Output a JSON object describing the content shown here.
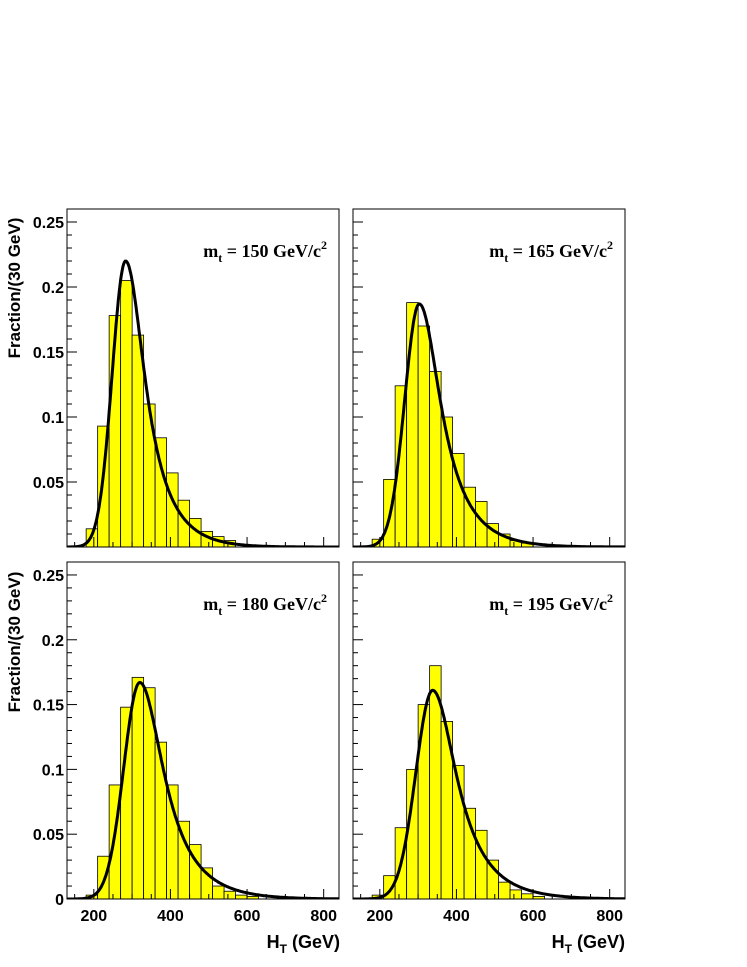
{
  "figure": {
    "ylabel": "Fraction/(30 GeV)",
    "xlabel_main": "H",
    "xlabel_sub": "T",
    "xlabel_unit": " (GeV)"
  },
  "chart_data": [
    {
      "type": "bar",
      "panel": "top-left",
      "annotation": {
        "prefix": "m",
        "sub": "t",
        "value": " = 150 GeV/c",
        "sup": "2"
      },
      "bin_width": 30,
      "bin_edges": [
        180,
        210,
        240,
        270,
        300,
        330,
        360,
        390,
        420,
        450,
        480,
        510,
        540,
        570
      ],
      "values": [
        0.014,
        0.093,
        0.178,
        0.205,
        0.163,
        0.11,
        0.084,
        0.057,
        0.036,
        0.022,
        0.012,
        0.008,
        0.005
      ],
      "fit_curve": {
        "peak_x": 283,
        "peak_y": 0.22,
        "sigma_left": 35,
        "sigma_right": 65
      },
      "xlim": [
        130,
        840
      ],
      "ylim": [
        0,
        0.26
      ],
      "x_ticks": [
        200,
        400,
        600,
        800
      ],
      "y_ticks": [
        0.05,
        0.1,
        0.15,
        0.2,
        0.25
      ],
      "y_tick_labels": [
        "0.05",
        "0.1",
        "0.15",
        "0.2",
        "0.25"
      ],
      "fill_color": "#ffff00",
      "line_color": "#000000"
    },
    {
      "type": "bar",
      "panel": "top-right",
      "annotation": {
        "prefix": "m",
        "sub": "t",
        "value": " = 165 GeV/c",
        "sup": "2"
      },
      "bin_width": 30,
      "bin_edges": [
        180,
        210,
        240,
        270,
        300,
        330,
        360,
        390,
        420,
        450,
        480,
        510,
        540,
        570,
        600
      ],
      "values": [
        0.006,
        0.052,
        0.124,
        0.188,
        0.17,
        0.135,
        0.1,
        0.072,
        0.046,
        0.035,
        0.018,
        0.01,
        0.005,
        0.003
      ],
      "fit_curve": {
        "peak_x": 303,
        "peak_y": 0.187,
        "sigma_left": 38,
        "sigma_right": 72
      },
      "xlim": [
        130,
        840
      ],
      "ylim": [
        0,
        0.26
      ],
      "x_ticks": [
        200,
        400,
        600,
        800
      ],
      "y_ticks": [
        0.05,
        0.1,
        0.15,
        0.2,
        0.25
      ],
      "fill_color": "#ffff00",
      "line_color": "#000000"
    },
    {
      "type": "bar",
      "panel": "bottom-left",
      "annotation": {
        "prefix": "m",
        "sub": "t",
        "value": " = 180 GeV/c",
        "sup": "2"
      },
      "bin_width": 30,
      "bin_edges": [
        180,
        210,
        240,
        270,
        300,
        330,
        360,
        390,
        420,
        450,
        480,
        510,
        540,
        570,
        600,
        630
      ],
      "values": [
        0.003,
        0.033,
        0.088,
        0.148,
        0.171,
        0.163,
        0.121,
        0.088,
        0.06,
        0.042,
        0.024,
        0.01,
        0.006,
        0.003,
        0.002
      ],
      "fit_curve": {
        "peak_x": 320,
        "peak_y": 0.167,
        "sigma_left": 42,
        "sigma_right": 80
      },
      "xlim": [
        130,
        840
      ],
      "ylim": [
        0,
        0.26
      ],
      "x_ticks": [
        200,
        400,
        600,
        800
      ],
      "x_tick_labels": [
        "200",
        "400",
        "600",
        "800"
      ],
      "y_ticks": [
        0,
        0.05,
        0.1,
        0.15,
        0.2,
        0.25
      ],
      "y_tick_labels": [
        "0",
        "0.05",
        "0.1",
        "0.15",
        "0.2",
        "0.25"
      ],
      "fill_color": "#ffff00",
      "line_color": "#000000"
    },
    {
      "type": "bar",
      "panel": "bottom-right",
      "annotation": {
        "prefix": "m",
        "sub": "t",
        "value": " = 195 GeV/c",
        "sup": "2"
      },
      "bin_width": 30,
      "bin_edges": [
        180,
        210,
        240,
        270,
        300,
        330,
        360,
        390,
        420,
        450,
        480,
        510,
        540,
        570,
        600,
        630
      ],
      "values": [
        0.003,
        0.018,
        0.055,
        0.1,
        0.15,
        0.18,
        0.137,
        0.103,
        0.07,
        0.053,
        0.03,
        0.013,
        0.007,
        0.004,
        0.002
      ],
      "fit_curve": {
        "peak_x": 338,
        "peak_y": 0.161,
        "sigma_left": 44,
        "sigma_right": 80
      },
      "xlim": [
        130,
        840
      ],
      "ylim": [
        0,
        0.26
      ],
      "x_ticks": [
        200,
        400,
        600,
        800
      ],
      "x_tick_labels": [
        "200",
        "400",
        "600",
        "800"
      ],
      "y_ticks": [
        0.05,
        0.1,
        0.15,
        0.2,
        0.25
      ],
      "fill_color": "#ffff00",
      "line_color": "#000000"
    }
  ]
}
